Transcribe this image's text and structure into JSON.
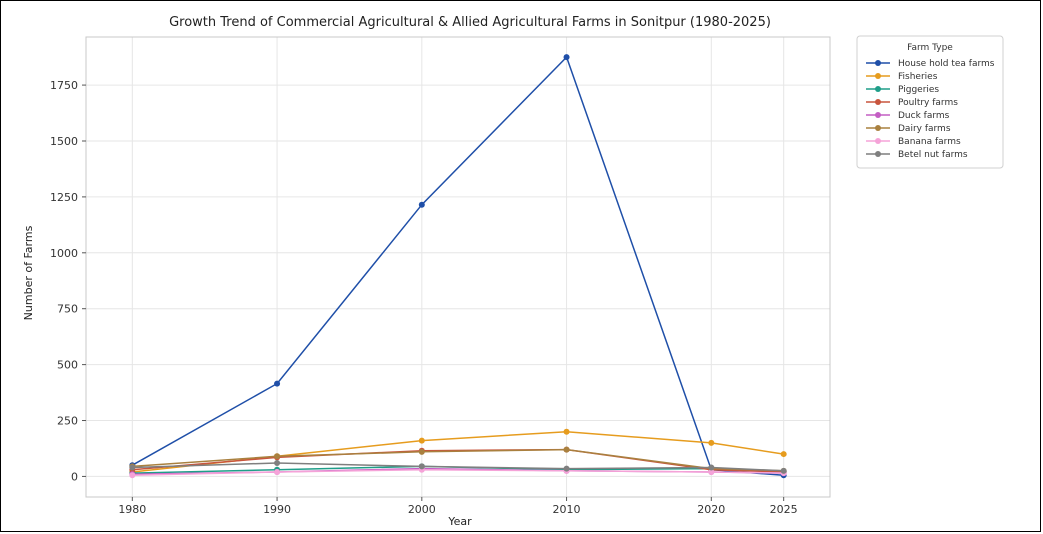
{
  "chart_data": {
    "type": "line",
    "title": "Growth Trend of Commercial Agricultural & Allied Agricultural Farms in Sonitpur (1980-2025)",
    "xlabel": "Year",
    "ylabel": "Number of Farms",
    "x": [
      1980,
      1990,
      2000,
      2010,
      2020,
      2025
    ],
    "xlim": [
      1976.8,
      2028.2
    ],
    "ylim": [
      -92,
      1965
    ],
    "yticks": [
      0,
      250,
      500,
      750,
      1000,
      1250,
      1500,
      1750
    ],
    "grid": true,
    "legend": {
      "title": "Farm Type",
      "placement": "outside-top-right"
    },
    "series": [
      {
        "name": "House hold tea farms",
        "color": "#1f4fa8",
        "values": [
          50,
          415,
          1215,
          1875,
          30,
          5
        ]
      },
      {
        "name": "Fisheries",
        "color": "#e69c1e",
        "values": [
          20,
          90,
          160,
          200,
          150,
          100
        ]
      },
      {
        "name": "Piggeries",
        "color": "#1f9e89",
        "values": [
          15,
          30,
          45,
          30,
          35,
          20
        ]
      },
      {
        "name": "Poultry farms",
        "color": "#c8553d",
        "values": [
          30,
          85,
          115,
          120,
          30,
          20
        ]
      },
      {
        "name": "Duck farms",
        "color": "#c45ec4",
        "values": [
          10,
          20,
          35,
          25,
          20,
          15
        ]
      },
      {
        "name": "Dairy farms",
        "color": "#a9803f",
        "values": [
          45,
          90,
          110,
          120,
          35,
          25
        ]
      },
      {
        "name": "Banana farms",
        "color": "#f5a3d8",
        "values": [
          5,
          20,
          30,
          25,
          20,
          15
        ]
      },
      {
        "name": "Betel nut farms",
        "color": "#7f7f7f",
        "values": [
          40,
          60,
          45,
          35,
          40,
          25
        ]
      }
    ]
  }
}
